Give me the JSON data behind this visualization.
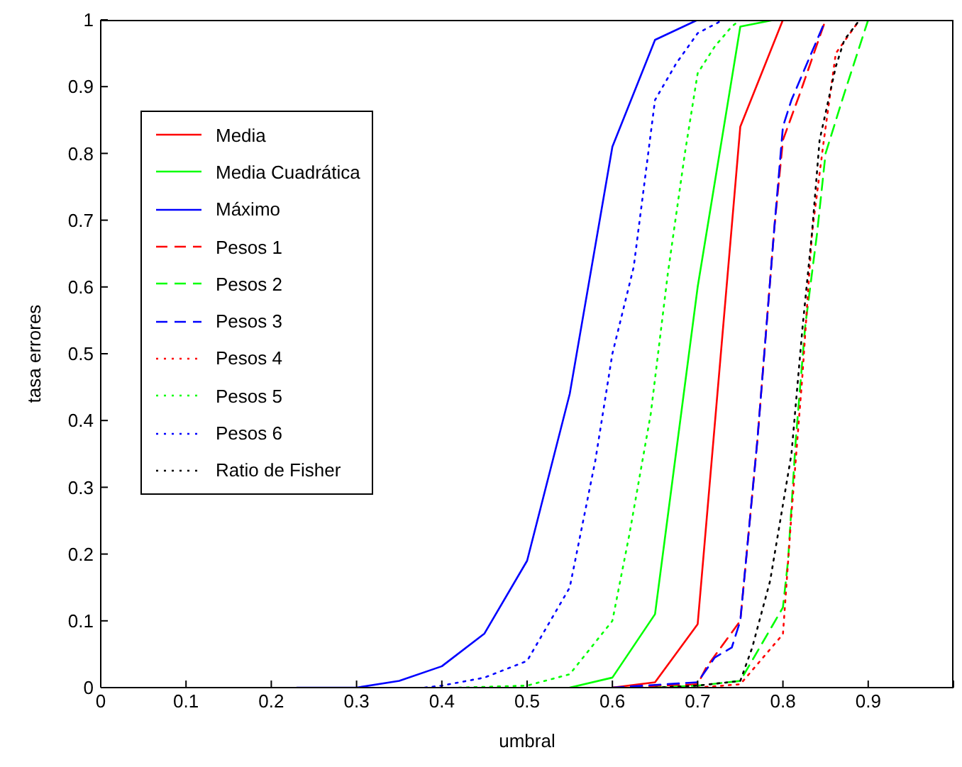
{
  "chart_data": {
    "type": "line",
    "xlabel": "umbral",
    "ylabel": "tasa errores",
    "xlim": [
      0,
      1
    ],
    "ylim": [
      0,
      1
    ],
    "xticks": [
      0,
      0.1,
      0.2,
      0.3,
      0.4,
      0.5,
      0.6,
      0.7,
      0.8,
      0.9,
      {
        "value": 1,
        "label": null
      }
    ],
    "yticks": [
      0,
      0.1,
      0.2,
      0.3,
      0.4,
      0.5,
      0.6,
      0.7,
      0.8,
      0.9,
      1
    ],
    "grid": false,
    "legend": "top left",
    "marker": "none",
    "series": [
      {
        "name": "Media",
        "color": "#ff0000",
        "line_style": "solid",
        "x": [
          0.6,
          0.65,
          0.7,
          0.75,
          0.8
        ],
        "values": [
          0,
          0.008,
          0.095,
          0.84,
          1
        ]
      },
      {
        "name": "Media Cuadrática",
        "color": "#00ff00",
        "line_style": "solid",
        "x": [
          0.55,
          0.6,
          0.65,
          0.7,
          0.75,
          0.79
        ],
        "values": [
          0,
          0.015,
          0.11,
          0.6,
          0.99,
          1
        ]
      },
      {
        "name": "Máximo",
        "color": "#0000ff",
        "line_style": "solid",
        "x": [
          0.23,
          0.3,
          0.35,
          0.4,
          0.45,
          0.5,
          0.55,
          0.6,
          0.65,
          0.7,
          0.72
        ],
        "values": [
          0,
          0,
          0.01,
          0.032,
          0.081,
          0.19,
          0.44,
          0.81,
          0.97,
          1,
          1
        ]
      },
      {
        "name": "Pesos 1",
        "color": "#ff0000",
        "line_style": "dashed",
        "x": [
          0.6,
          0.7,
          0.71,
          0.75,
          0.77,
          0.79,
          0.8,
          0.82,
          0.85
        ],
        "values": [
          0,
          0.005,
          0.03,
          0.1,
          0.37,
          0.69,
          0.82,
          0.89,
          1
        ]
      },
      {
        "name": "Pesos 2",
        "color": "#00ff00",
        "line_style": "dashed",
        "x": [
          0.65,
          0.7,
          0.75,
          0.8,
          0.806,
          0.815,
          0.826,
          0.84,
          0.85,
          0.872,
          0.9
        ],
        "values": [
          0,
          0.003,
          0.01,
          0.12,
          0.19,
          0.37,
          0.54,
          0.68,
          0.8,
          0.89,
          1
        ]
      },
      {
        "name": "Pesos 3",
        "color": "#0000ff",
        "line_style": "dashed",
        "x": [
          0.6,
          0.7,
          0.72,
          0.74,
          0.75,
          0.77,
          0.79,
          0.8,
          0.81,
          0.85
        ],
        "values": [
          0,
          0.008,
          0.045,
          0.06,
          0.1,
          0.37,
          0.69,
          0.84,
          0.88,
          1
        ]
      },
      {
        "name": "Pesos 4",
        "color": "#ff0000",
        "line_style": "dotted",
        "x": [
          0.7,
          0.75,
          0.78,
          0.8,
          0.81,
          0.823,
          0.834,
          0.848,
          0.862,
          0.89
        ],
        "values": [
          0,
          0.005,
          0.05,
          0.08,
          0.26,
          0.47,
          0.68,
          0.82,
          0.95,
          1
        ]
      },
      {
        "name": "Pesos 5",
        "color": "#00ff00",
        "line_style": "dotted",
        "x": [
          0.42,
          0.5,
          0.55,
          0.6,
          0.62,
          0.645,
          0.665,
          0.685,
          0.7,
          0.72,
          0.74,
          0.75
        ],
        "values": [
          0,
          0.003,
          0.02,
          0.1,
          0.23,
          0.41,
          0.62,
          0.8,
          0.92,
          0.96,
          0.99,
          1
        ]
      },
      {
        "name": "Pesos 6",
        "color": "#0000ff",
        "line_style": "dotted",
        "x": [
          0.38,
          0.4,
          0.45,
          0.5,
          0.55,
          0.58,
          0.6,
          0.625,
          0.65,
          0.675,
          0.7,
          0.73
        ],
        "values": [
          0,
          0.003,
          0.015,
          0.04,
          0.15,
          0.34,
          0.5,
          0.63,
          0.88,
          0.935,
          0.98,
          1
        ]
      },
      {
        "name": "Ratio de Fisher",
        "color": "#000000",
        "line_style": "dotted",
        "x": [
          0.65,
          0.7,
          0.75,
          0.764,
          0.785,
          0.81,
          0.823,
          0.834,
          0.843,
          0.862,
          0.872,
          0.89
        ],
        "values": [
          0,
          0.003,
          0.01,
          0.06,
          0.16,
          0.35,
          0.54,
          0.68,
          0.82,
          0.93,
          0.97,
          1
        ]
      }
    ]
  }
}
